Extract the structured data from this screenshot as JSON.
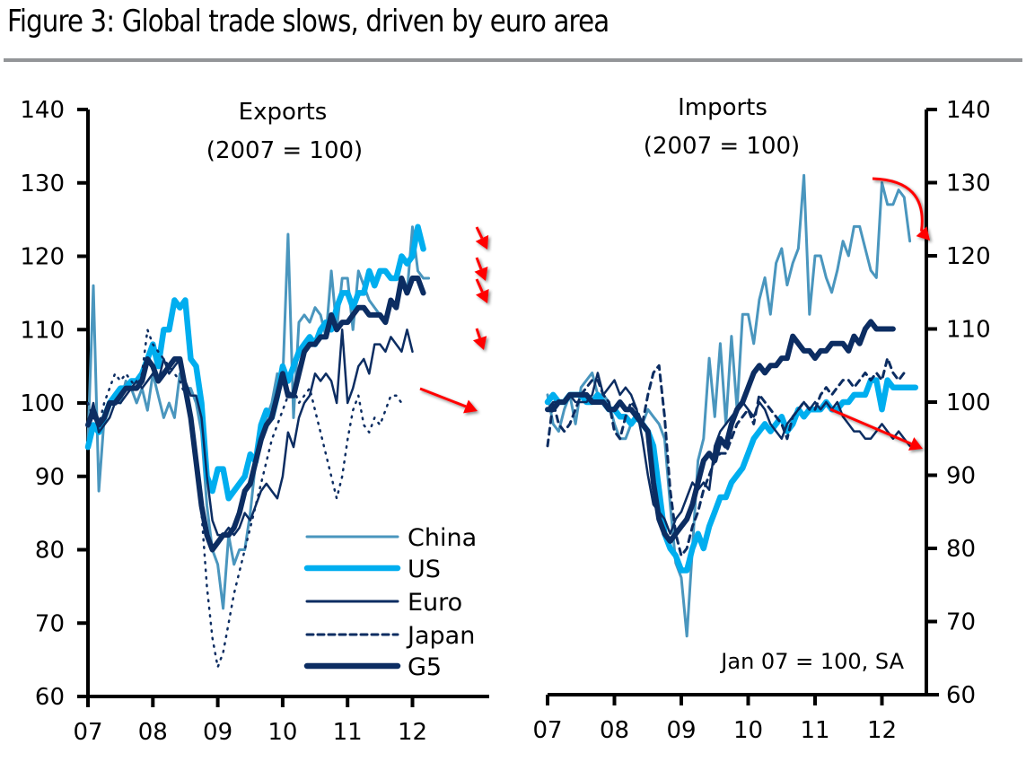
{
  "header": {
    "title": "Figure 3: Global trade slows, driven by euro area"
  },
  "colors": {
    "China": "#4a96be",
    "US": "#00aeef",
    "Euro": "#0c2d62",
    "Japan": "#0c2d62",
    "G5": "#0c2d62",
    "annotation_arrow": "#ff0000",
    "title_rule": "#939598"
  },
  "chart_data": [
    {
      "type": "line",
      "panel": "left",
      "title": "Exports",
      "subtitle": "(2007 = 100)",
      "xlabel": "",
      "ylabel": "",
      "x_range": [
        2007.0,
        2012.75
      ],
      "ylim": [
        60,
        140
      ],
      "yticks": [
        60,
        70,
        80,
        90,
        100,
        110,
        120,
        130,
        140
      ],
      "ytick_labels": [
        "60",
        "70",
        "80",
        "90",
        "100",
        "110",
        "120",
        "130",
        "140"
      ],
      "xticks": [
        2007,
        2008,
        2009,
        2010,
        2011,
        2012
      ],
      "xtick_labels": [
        "07",
        "08",
        "09",
        "10",
        "11",
        "12"
      ],
      "y_axis_side": "left",
      "grid": false,
      "legend": {
        "placement": "bottom-right",
        "entries": [
          "China",
          "US",
          "Euro",
          "Japan",
          "G5"
        ]
      },
      "x": [
        2007.0,
        2007.083,
        2007.167,
        2007.25,
        2007.333,
        2007.417,
        2007.5,
        2007.583,
        2007.667,
        2007.75,
        2007.833,
        2007.917,
        2008.0,
        2008.083,
        2008.167,
        2008.25,
        2008.333,
        2008.417,
        2008.5,
        2008.583,
        2008.667,
        2008.75,
        2008.833,
        2008.917,
        2009.0,
        2009.083,
        2009.167,
        2009.25,
        2009.333,
        2009.417,
        2009.5,
        2009.583,
        2009.667,
        2009.75,
        2009.833,
        2009.917,
        2010.0,
        2010.083,
        2010.167,
        2010.25,
        2010.333,
        2010.417,
        2010.5,
        2010.583,
        2010.667,
        2010.75,
        2010.833,
        2010.917,
        2011.0,
        2011.083,
        2011.167,
        2011.25,
        2011.333,
        2011.417,
        2011.5,
        2011.583,
        2011.667,
        2011.75,
        2011.833,
        2011.917,
        2012.0,
        2012.083,
        2012.167,
        2012.25,
        2012.333,
        2012.417,
        2012.5
      ],
      "series": [
        {
          "name": "China",
          "style": "thin",
          "values": [
            95,
            116,
            88,
            98,
            100,
            101,
            100,
            103,
            102,
            100,
            102,
            99,
            104,
            101,
            98,
            100,
            98,
            104,
            102,
            102,
            100,
            96,
            86,
            80,
            78,
            72,
            82,
            78,
            80,
            80,
            85,
            92,
            96,
            98,
            100,
            104,
            103,
            123,
            98,
            111,
            112,
            111,
            113,
            112,
            109,
            118,
            110,
            117,
            117,
            110,
            118,
            116,
            114,
            113,
            112,
            111,
            114,
            113,
            116,
            115,
            124,
            118,
            117,
            117,
            null,
            null,
            null
          ]
        },
        {
          "name": "US",
          "style": "thick-light",
          "values": [
            94,
            97,
            96,
            98,
            100,
            101,
            102,
            102,
            103,
            103,
            104,
            106,
            108,
            105,
            110,
            110,
            114,
            113,
            114,
            106,
            105,
            100,
            90,
            88,
            91,
            91,
            87,
            88,
            89,
            90,
            93,
            92,
            97,
            99,
            98,
            101,
            105,
            103,
            105,
            107,
            108,
            109,
            108,
            110,
            111,
            110,
            113,
            115,
            115,
            113,
            115,
            115,
            118,
            116,
            118,
            118,
            117,
            117,
            120,
            119,
            120,
            124,
            121,
            null,
            null,
            null,
            null
          ]
        },
        {
          "name": "Euro",
          "style": "thin-dark",
          "values": [
            97,
            100,
            96,
            97,
            98,
            100,
            100,
            101,
            102,
            103,
            102,
            103,
            104,
            103,
            106,
            104,
            105,
            106,
            103,
            101,
            101,
            98,
            90,
            84,
            82,
            82,
            83,
            82,
            83,
            85,
            84,
            86,
            88,
            89,
            88,
            87,
            90,
            96,
            94,
            98,
            100,
            101,
            104,
            103,
            104,
            103,
            100,
            110,
            100,
            102,
            105,
            106,
            104,
            108,
            108,
            107,
            109,
            108,
            107,
            110,
            107,
            null,
            null,
            null,
            null,
            null,
            null
          ]
        },
        {
          "name": "Japan",
          "style": "dotted-then-dashed",
          "values": [
            100,
            98,
            97,
            100,
            102,
            104,
            103,
            104,
            103,
            102,
            104,
            110,
            108,
            107,
            106,
            105,
            104,
            103,
            101,
            98,
            92,
            85,
            75,
            68,
            64,
            66,
            70,
            74,
            77,
            80,
            83,
            86,
            89,
            92,
            95,
            97,
            99,
            101,
            102,
            100,
            101,
            102,
            99,
            96,
            93,
            90,
            87,
            90,
            95,
            99,
            101,
            97,
            96,
            98,
            97,
            99,
            101,
            101,
            100,
            null,
            null,
            null,
            null,
            null,
            null,
            null,
            null
          ]
        },
        {
          "name": "G5",
          "style": "thick-dark",
          "values": [
            97,
            99,
            97,
            98,
            100,
            100,
            101,
            102,
            102,
            102,
            103,
            106,
            105,
            103,
            104,
            105,
            106,
            106,
            102,
            98,
            92,
            86,
            82,
            80,
            81,
            82,
            82,
            83,
            85,
            88,
            89,
            92,
            95,
            97,
            98,
            101,
            104,
            101,
            101,
            104,
            107,
            108,
            108,
            109,
            109,
            112,
            110,
            111,
            111,
            112,
            113,
            113,
            112,
            112,
            112,
            111,
            114,
            113,
            117,
            115,
            117,
            117,
            115,
            null,
            null,
            null,
            null
          ]
        }
      ],
      "annotations": [
        {
          "type": "arrow",
          "color": "red",
          "target": "China/US end",
          "direction": "down"
        },
        {
          "type": "arrow",
          "color": "red",
          "target": "G5 end",
          "direction": "down"
        },
        {
          "type": "arrow",
          "color": "red",
          "target": "Euro end",
          "direction": "down"
        },
        {
          "type": "arrow",
          "color": "red",
          "target": "Japan end",
          "direction": "down-right"
        }
      ]
    },
    {
      "type": "line",
      "panel": "right",
      "title": "Imports",
      "subtitle": "(2007 = 100)",
      "note": "Jan 07 = 100, SA",
      "xlabel": "",
      "ylabel": "",
      "x_range": [
        2007.0,
        2012.75
      ],
      "ylim": [
        60,
        140
      ],
      "yticks": [
        60,
        70,
        80,
        90,
        100,
        110,
        120,
        130,
        140
      ],
      "ytick_labels": [
        "60",
        "70",
        "80",
        "90",
        "100",
        "110",
        "120",
        "130",
        "140"
      ],
      "xticks": [
        2007,
        2008,
        2009,
        2010,
        2011,
        2012
      ],
      "xtick_labels": [
        "07",
        "08",
        "09",
        "10",
        "11",
        "12"
      ],
      "y_axis_side": "right",
      "grid": false,
      "x": [
        2007.0,
        2007.083,
        2007.167,
        2007.25,
        2007.333,
        2007.417,
        2007.5,
        2007.583,
        2007.667,
        2007.75,
        2007.833,
        2007.917,
        2008.0,
        2008.083,
        2008.167,
        2008.25,
        2008.333,
        2008.417,
        2008.5,
        2008.583,
        2008.667,
        2008.75,
        2008.833,
        2008.917,
        2009.0,
        2009.083,
        2009.167,
        2009.25,
        2009.333,
        2009.417,
        2009.5,
        2009.583,
        2009.667,
        2009.75,
        2009.833,
        2009.917,
        2010.0,
        2010.083,
        2010.167,
        2010.25,
        2010.333,
        2010.417,
        2010.5,
        2010.583,
        2010.667,
        2010.75,
        2010.833,
        2010.917,
        2011.0,
        2011.083,
        2011.167,
        2011.25,
        2011.333,
        2011.417,
        2011.5,
        2011.583,
        2011.667,
        2011.75,
        2011.833,
        2011.917,
        2012.0,
        2012.083,
        2012.167,
        2012.25,
        2012.333,
        2012.417,
        2012.5
      ],
      "series": [
        {
          "name": "China",
          "style": "thin",
          "values": [
            101,
            97,
            96,
            99,
            101,
            97,
            102,
            103,
            104,
            101,
            101,
            100,
            97,
            95,
            95,
            97,
            98,
            97,
            99,
            98,
            97,
            95,
            86,
            78,
            76,
            68,
            80,
            92,
            95,
            106,
            98,
            108,
            97,
            109,
            99,
            112,
            112,
            108,
            114,
            117,
            112,
            119,
            121,
            116,
            119,
            121,
            131,
            112,
            120,
            120,
            117,
            115,
            118,
            122,
            120,
            124,
            124,
            121,
            118,
            117,
            130,
            127,
            127,
            129,
            128,
            122,
            null
          ]
        },
        {
          "name": "US",
          "style": "thick-light",
          "values": [
            100,
            101,
            100,
            100,
            101,
            101,
            101,
            100,
            100,
            101,
            100,
            99,
            99,
            98,
            98,
            97,
            98,
            97,
            96,
            94,
            88,
            82,
            80,
            79,
            77,
            77,
            80,
            82,
            80,
            83,
            85,
            87,
            87,
            89,
            90,
            91,
            93,
            95,
            96,
            97,
            96,
            97,
            98,
            96,
            97,
            99,
            98,
            99,
            99,
            99,
            100,
            99,
            99,
            100,
            100,
            101,
            101,
            101,
            103,
            103,
            99,
            103,
            102,
            102,
            102,
            102,
            102
          ]
        },
        {
          "name": "Euro",
          "style": "thin-dark",
          "values": [
            99,
            100,
            100,
            100,
            101,
            100,
            100,
            100,
            101,
            104,
            101,
            102,
            103,
            101,
            102,
            101,
            99,
            95,
            90,
            86,
            85,
            84,
            82,
            84,
            85,
            87,
            89,
            88,
            89,
            88,
            94,
            96,
            97,
            98,
            99,
            100,
            99,
            98,
            100,
            99,
            97,
            96,
            95,
            97,
            98,
            99,
            100,
            99,
            100,
            99,
            100,
            99,
            100,
            98,
            97,
            96,
            96,
            95,
            95,
            96,
            97,
            96,
            95,
            96,
            95,
            94,
            94
          ]
        },
        {
          "name": "Japan",
          "style": "dashed",
          "values": [
            94,
            100,
            97,
            96,
            97,
            99,
            101,
            102,
            103,
            103,
            101,
            100,
            96,
            95,
            98,
            100,
            99,
            97,
            101,
            104,
            105,
            98,
            88,
            82,
            79,
            80,
            83,
            85,
            88,
            90,
            92,
            93,
            93,
            95,
            97,
            98,
            99,
            97,
            101,
            100,
            99,
            98,
            97,
            95,
            98,
            99,
            100,
            99,
            99,
            101,
            102,
            101,
            102,
            103,
            103,
            102,
            103,
            104,
            103,
            104,
            103,
            106,
            104,
            103,
            104,
            null,
            null
          ]
        },
        {
          "name": "G5",
          "style": "thick-dark",
          "values": [
            99,
            99,
            100,
            100,
            101,
            101,
            101,
            101,
            100,
            100,
            100,
            99,
            99,
            100,
            99,
            99,
            98,
            97,
            96,
            89,
            84,
            82,
            81,
            82,
            83,
            84,
            86,
            89,
            92,
            93,
            92,
            95,
            94,
            97,
            99,
            100,
            102,
            104,
            105,
            104,
            105,
            105,
            106,
            106,
            109,
            108,
            107,
            107,
            106,
            107,
            107,
            108,
            108,
            108,
            107,
            109,
            108,
            110,
            111,
            110,
            110,
            110,
            110,
            null,
            null,
            null,
            null
          ]
        }
      ],
      "annotations": [
        {
          "type": "arrow",
          "color": "red",
          "target": "China end",
          "direction": "curved-down"
        },
        {
          "type": "arrow",
          "color": "red",
          "target": "Euro end",
          "direction": "down-right"
        }
      ]
    }
  ]
}
